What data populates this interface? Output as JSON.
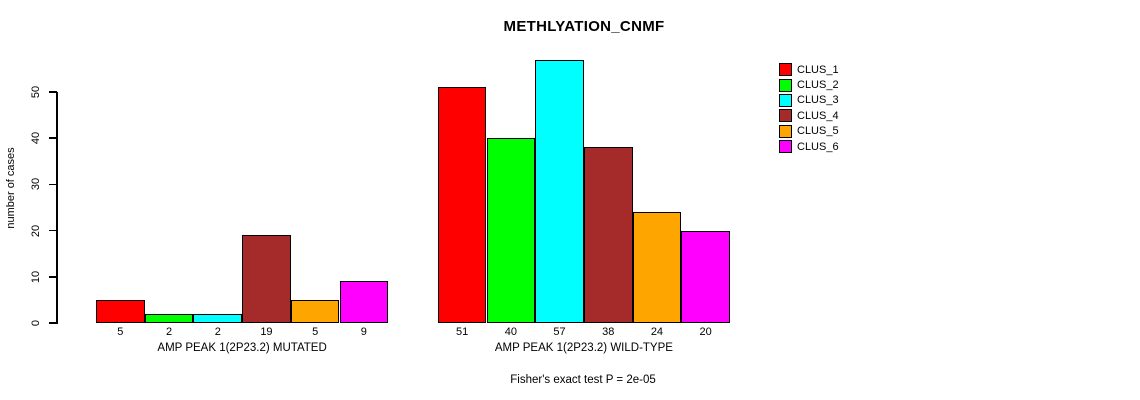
{
  "chart_data": {
    "type": "bar",
    "title": "METHLYATION_CNMF",
    "ylabel": "number of cases",
    "xlabel": "",
    "annotation": "Fisher's exact test P = 2e-05",
    "yticks": [
      0,
      10,
      20,
      30,
      40,
      50
    ],
    "ylim": [
      0,
      57
    ],
    "grid": false,
    "legend_position": "top-right",
    "series_names": [
      "CLUS_1",
      "CLUS_2",
      "CLUS_3",
      "CLUS_4",
      "CLUS_5",
      "CLUS_6"
    ],
    "colors": [
      "#ff0000",
      "#00ff00",
      "#00ffff",
      "#a52a2a",
      "#ffa500",
      "#ff00ff"
    ],
    "categories": [
      "AMP PEAK 1(2P23.2) MUTATED",
      "AMP PEAK 1(2P23.2) WILD-TYPE"
    ],
    "groups": [
      {
        "label": "AMP PEAK 1(2P23.2) MUTATED",
        "values": [
          5,
          2,
          2,
          19,
          5,
          9
        ]
      },
      {
        "label": "AMP PEAK 1(2P23.2) WILD-TYPE",
        "values": [
          51,
          40,
          57,
          38,
          24,
          20
        ]
      }
    ]
  }
}
